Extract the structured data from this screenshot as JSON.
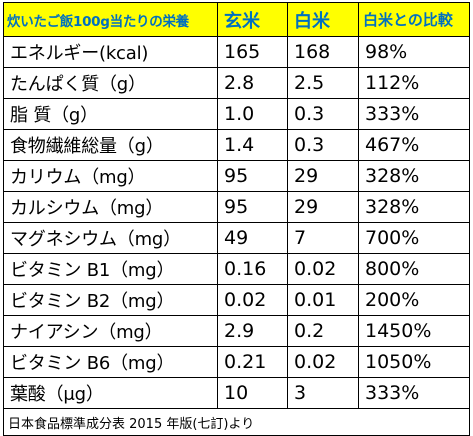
{
  "table": {
    "headers": [
      "炊いたご飯100g当たりの栄養",
      "玄米",
      "白米",
      "白米との比較"
    ],
    "rows": [
      [
        "エネルギー(kcal)",
        "165",
        "168",
        "98%"
      ],
      [
        "たんぱく質（g）",
        "2.8",
        "2.5",
        "112%"
      ],
      [
        "脂 質（g）",
        "1.0",
        "0.3",
        "333%"
      ],
      [
        "食物繊維総量（g）",
        "1.4",
        "0.3",
        "467%"
      ],
      [
        "カリウム（mg）",
        "95",
        "29",
        "328%"
      ],
      [
        "カルシウム（mg）",
        "95",
        "29",
        "328%"
      ],
      [
        "マグネシウム（mg）",
        "49",
        "7",
        "700%"
      ],
      [
        "ビタミン B1（mg）",
        "0.16",
        "0.02",
        "800%"
      ],
      [
        "ビタミン B2（mg）",
        "0.02",
        "0.01",
        "200%"
      ],
      [
        "ナイアシン（mg）",
        "2.9",
        "0.2",
        "1450%"
      ],
      [
        "ビタミン B6（mg）",
        "0.21",
        "0.02",
        "1050%"
      ],
      [
        "葉酸（μg）",
        "10",
        "3",
        "333%"
      ]
    ],
    "source": "日本食品標準成分表 2015 年版(七訂)より"
  },
  "colors": {
    "header_bg": "#ffff00",
    "header_text": "#0070c0",
    "border": "#000000"
  }
}
